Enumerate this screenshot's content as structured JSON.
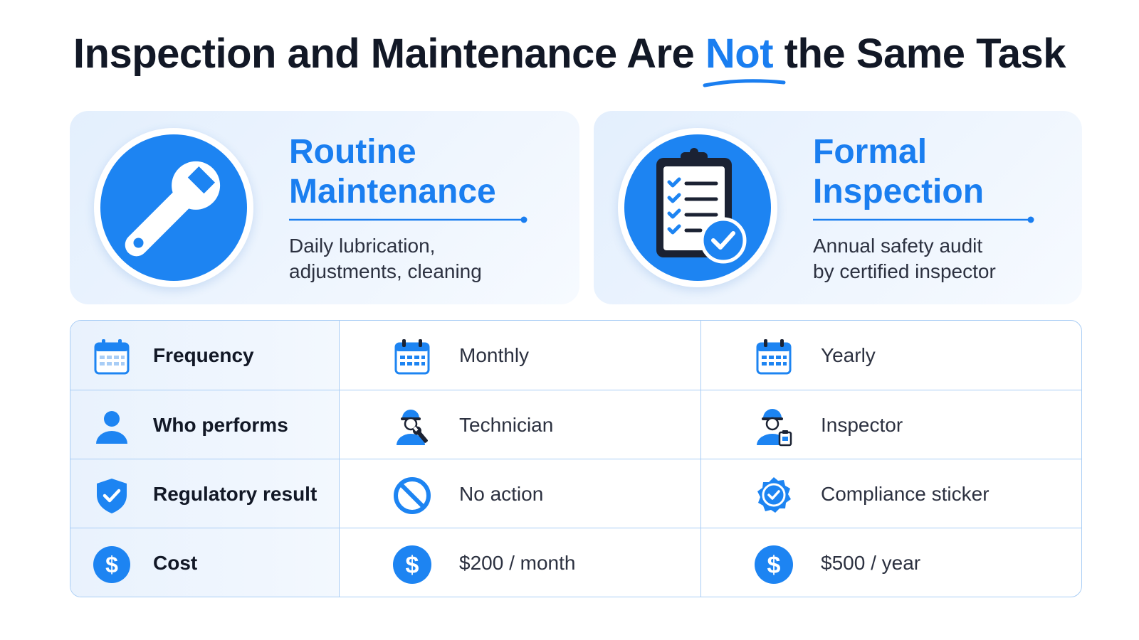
{
  "title": {
    "before": "Inspection and Maintenance Are ",
    "accent": "Not",
    "after": " the Same Task"
  },
  "cards": {
    "left": {
      "title_line1": "Routine",
      "title_line2": "Maintenance",
      "desc_line1": "Daily lubrication,",
      "desc_line2": "adjustments, cleaning",
      "icon": "wrench-icon"
    },
    "right": {
      "title_line1": "Formal",
      "title_line2": "Inspection",
      "desc_line1": "Annual safety audit",
      "desc_line2": "by certified inspector",
      "icon": "clipboard-check-icon"
    }
  },
  "table": {
    "rows": [
      {
        "label": "Frequency",
        "label_icon": "calendar-icon",
        "maintenance": "Monthly",
        "maintenance_icon": "calendar-icon",
        "inspection": "Yearly",
        "inspection_icon": "calendar-icon"
      },
      {
        "label": "Who performs",
        "label_icon": "person-icon",
        "maintenance": "Technician",
        "maintenance_icon": "technician-icon",
        "inspection": "Inspector",
        "inspection_icon": "inspector-icon"
      },
      {
        "label": "Regulatory result",
        "label_icon": "shield-check-icon",
        "maintenance": "No action",
        "maintenance_icon": "prohibited-icon",
        "inspection": "Compliance sticker",
        "inspection_icon": "badge-check-icon"
      },
      {
        "label": "Cost",
        "label_icon": "dollar-icon",
        "maintenance": "$200 / month",
        "maintenance_icon": "dollar-icon",
        "inspection": "$500 / year",
        "inspection_icon": "dollar-icon"
      }
    ]
  },
  "colors": {
    "accent": "#1a7ef0",
    "icon_blue": "#1d84f2",
    "card_bg": "#e8f2fd",
    "table_border": "#a9cdf5",
    "text_dark": "#121826"
  }
}
